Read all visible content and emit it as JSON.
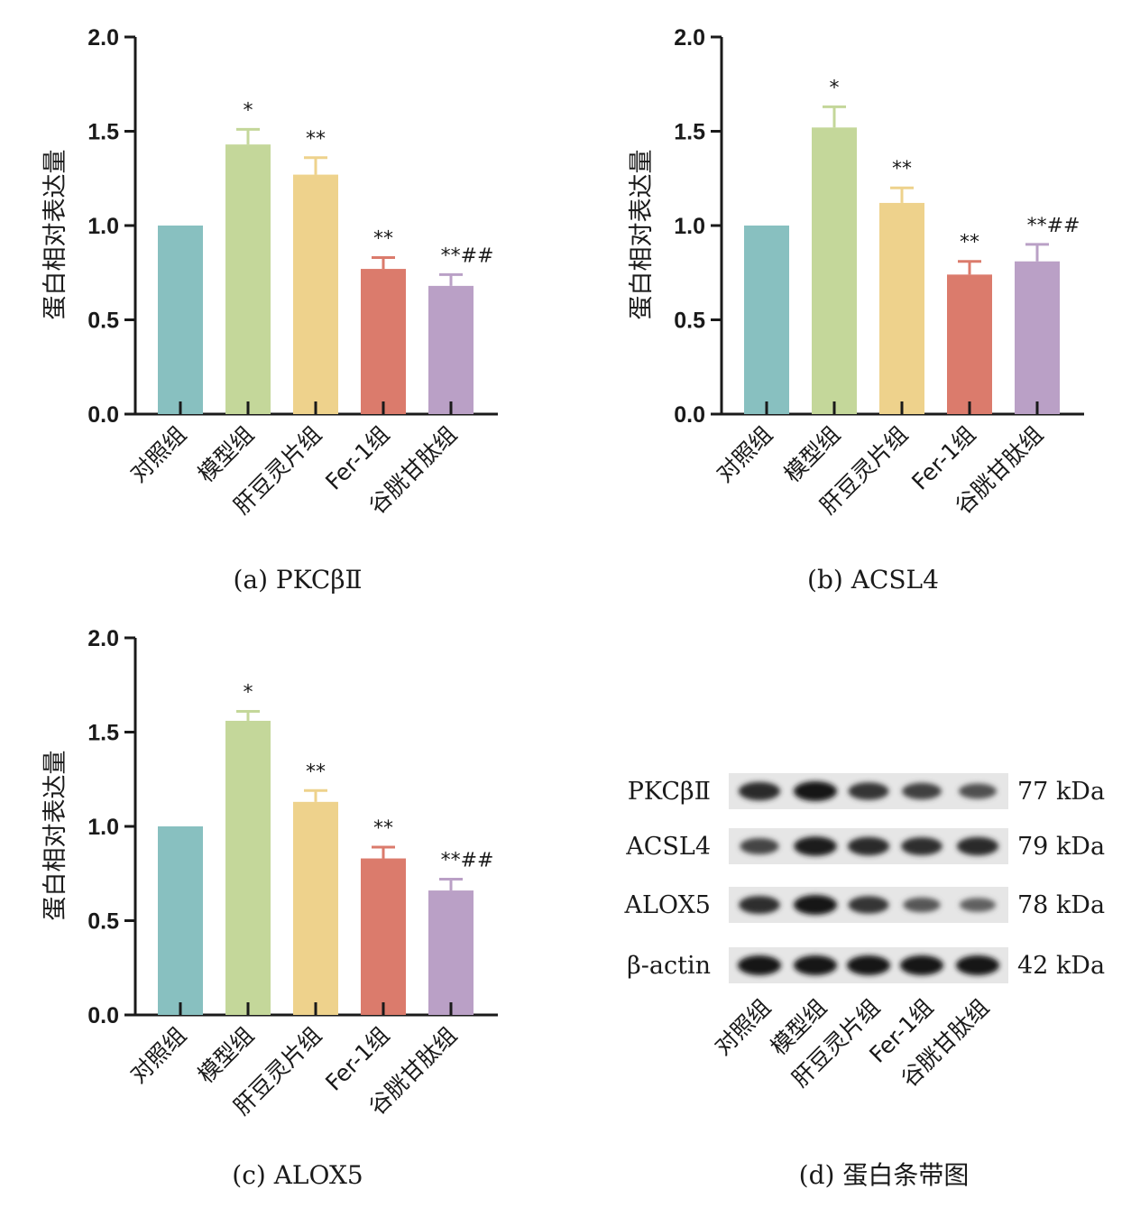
{
  "colors": [
    "#88c0c0",
    "#c4d79a",
    "#eed28c",
    "#db7b6c",
    "#baa0c6"
  ],
  "chart_data": [
    {
      "type": "bar",
      "caption": "(a) PKCβⅡ",
      "ylabel": "蛋白相对表达量",
      "ylim": [
        0,
        2.0
      ],
      "yticks": [
        "0.0",
        "0.5",
        "1.0",
        "1.5",
        "2.0"
      ],
      "categories": [
        "对照组",
        "模型组",
        "肝豆灵片组",
        "Fer-1组",
        "谷胱甘肽组"
      ],
      "values": [
        1.0,
        1.43,
        1.27,
        0.77,
        0.68
      ],
      "errors": [
        0,
        0.08,
        0.09,
        0.06,
        0.06
      ],
      "annotations": [
        "",
        "*",
        "**",
        "**",
        "**##"
      ]
    },
    {
      "type": "bar",
      "caption": "(b) ACSL4",
      "ylabel": "蛋白相对表达量",
      "ylim": [
        0,
        2.0
      ],
      "yticks": [
        "0.0",
        "0.5",
        "1.0",
        "1.5",
        "2.0"
      ],
      "categories": [
        "对照组",
        "模型组",
        "肝豆灵片组",
        "Fer-1组",
        "谷胱甘肽组"
      ],
      "values": [
        1.0,
        1.52,
        1.12,
        0.74,
        0.81
      ],
      "errors": [
        0,
        0.11,
        0.08,
        0.07,
        0.09
      ],
      "annotations": [
        "",
        "*",
        "**",
        "**",
        "**##"
      ]
    },
    {
      "type": "bar",
      "caption": "(c) ALOX5",
      "ylabel": "蛋白相对表达量",
      "ylim": [
        0,
        2.0
      ],
      "yticks": [
        "0.0",
        "0.5",
        "1.0",
        "1.5",
        "2.0"
      ],
      "categories": [
        "对照组",
        "模型组",
        "肝豆灵片组",
        "Fer-1组",
        "谷胱甘肽组"
      ],
      "values": [
        1.0,
        1.56,
        1.13,
        0.83,
        0.66
      ],
      "errors": [
        0,
        0.05,
        0.06,
        0.06,
        0.06
      ],
      "annotations": [
        "",
        "*",
        "**",
        "**",
        "**##"
      ]
    }
  ],
  "blot": {
    "caption": "(d) 蛋白条带图",
    "rows": [
      {
        "protein": "PKCβⅡ",
        "size": "77 kDa",
        "intensity": [
          0.85,
          1.0,
          0.75,
          0.65,
          0.5
        ]
      },
      {
        "protein": "ACSL4",
        "size": "79 kDa",
        "intensity": [
          0.6,
          0.95,
          0.85,
          0.8,
          0.85
        ]
      },
      {
        "protein": "ALOX5",
        "size": "78 kDa",
        "intensity": [
          0.8,
          1.0,
          0.75,
          0.45,
          0.35
        ]
      },
      {
        "protein": "β-actin",
        "size": "42 kDa",
        "intensity": [
          1.0,
          1.0,
          1.0,
          1.0,
          1.0
        ]
      }
    ],
    "lanes": [
      "对照组",
      "模型组",
      "肝豆灵片组",
      "Fer-1组",
      "谷胱甘肽组"
    ]
  }
}
